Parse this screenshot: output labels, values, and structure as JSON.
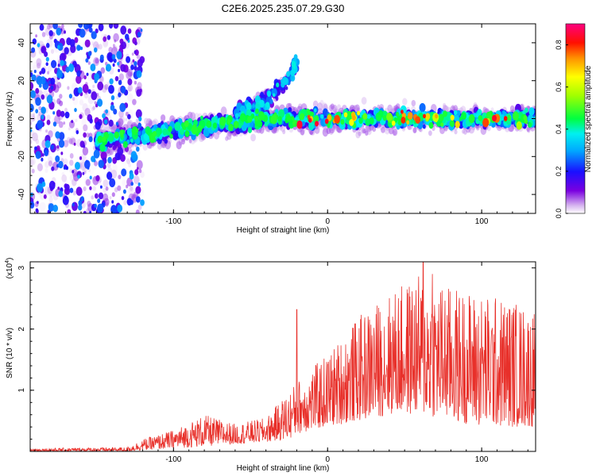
{
  "figure_title": "C2E6.2025.235.07.29.G30",
  "colors": {
    "snr_line": "#e8302a",
    "axis": "#000000",
    "background": "#ffffff"
  },
  "chart_data": [
    {
      "type": "heatmap",
      "id": "spectrogram",
      "xlabel": "Height of straight line (km)",
      "ylabel": "Frequency (Hz)",
      "xlim": [
        -193,
        135
      ],
      "ylim": [
        -50,
        50
      ],
      "xticks": [
        -100,
        0,
        100
      ],
      "yticks": [
        -40,
        -20,
        0,
        20,
        40
      ],
      "colorbar": {
        "label": "Normalized spectral amplitude",
        "range": [
          0,
          0.9
        ],
        "ticks": [
          0.0,
          0.2,
          0.4,
          0.6,
          0.8
        ],
        "tick_labels": [
          "0.0",
          "0.2",
          "0.4",
          "0.6",
          "0.8"
        ]
      },
      "features": [
        {
          "name": "main-ridge",
          "x": [
            -145,
            -120,
            -100,
            -80,
            -60,
            -40,
            -20,
            0,
            50,
            100,
            135
          ],
          "frequency_hz": [
            -11,
            -9,
            -6,
            -4,
            -2,
            0,
            0,
            0,
            0,
            0,
            0
          ],
          "peak_amplitude": 0.85
        },
        {
          "name": "upper-branch",
          "x": [
            -60,
            -45,
            -35,
            -25,
            -20
          ],
          "frequency_hz": [
            2,
            8,
            14,
            22,
            30
          ],
          "peak_amplitude": 0.35
        },
        {
          "name": "noise-region",
          "x_range": [
            -193,
            -120
          ],
          "frequency_range_hz": [
            -50,
            50
          ],
          "peak_amplitude": 0.3
        }
      ]
    },
    {
      "type": "line",
      "id": "snr",
      "xlabel": "Height of straight line (km)",
      "ylabel": "SNR (10 * v/v)",
      "y_multiplier_label": "(x10",
      "y_multiplier_exp": "4",
      "y_multiplier_close": ")",
      "xlim": [
        -193,
        135
      ],
      "ylim": [
        0,
        3.1
      ],
      "xticks": [
        -100,
        0,
        100
      ],
      "yticks": [
        1,
        2,
        3
      ],
      "envelope": [
        {
          "x": -193,
          "floor": 0.0,
          "peak": 0.05
        },
        {
          "x": -130,
          "floor": 0.0,
          "peak": 0.07
        },
        {
          "x": -120,
          "floor": 0.02,
          "peak": 0.2
        },
        {
          "x": -100,
          "floor": 0.05,
          "peak": 0.35
        },
        {
          "x": -80,
          "floor": 0.08,
          "peak": 0.6
        },
        {
          "x": -60,
          "floor": 0.12,
          "peak": 0.45
        },
        {
          "x": -40,
          "floor": 0.15,
          "peak": 0.55
        },
        {
          "x": -25,
          "floor": 0.2,
          "peak": 1.0
        },
        {
          "x": -18,
          "floor": 0.3,
          "peak": 1.2
        },
        {
          "x": 0,
          "floor": 0.4,
          "peak": 1.6
        },
        {
          "x": 20,
          "floor": 0.5,
          "peak": 2.2
        },
        {
          "x": 40,
          "floor": 0.6,
          "peak": 2.6
        },
        {
          "x": 60,
          "floor": 0.6,
          "peak": 2.9
        },
        {
          "x": 80,
          "floor": 0.5,
          "peak": 2.7
        },
        {
          "x": 100,
          "floor": 0.4,
          "peak": 2.6
        },
        {
          "x": 120,
          "floor": 0.4,
          "peak": 2.5
        },
        {
          "x": 135,
          "floor": 0.4,
          "peak": 2.3
        }
      ],
      "spikes": [
        {
          "x": -20,
          "y": 2.32
        },
        {
          "x": 62,
          "y": 3.1
        },
        {
          "x": 68,
          "y": 2.9
        }
      ]
    }
  ]
}
